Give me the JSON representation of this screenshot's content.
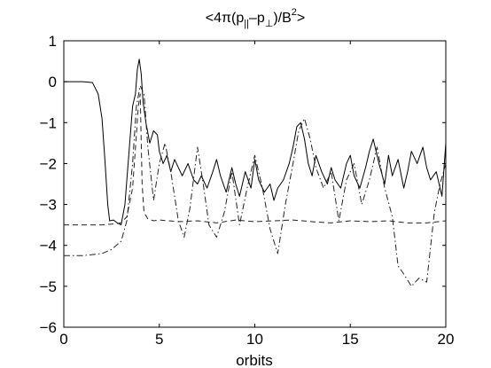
{
  "chart_data": {
    "type": "line",
    "title": {
      "prefix": "<4π(p",
      "sub1": "||",
      "mid": "–p",
      "sub2": "⊥",
      "after": ")/B",
      "sup": "2",
      "suffix": ">"
    },
    "xlabel": "orbits",
    "ylabel": "",
    "xlim": [
      0,
      20
    ],
    "ylim": [
      -6,
      1
    ],
    "xticks": [
      0,
      5,
      10,
      15,
      20
    ],
    "yticks": [
      1,
      0,
      -1,
      -2,
      -3,
      -4,
      -5,
      -6
    ],
    "ytick_labels": [
      "1",
      "0",
      "−1",
      "−2",
      "−3",
      "−4",
      "−5",
      "−6"
    ],
    "grid": false,
    "series": [
      {
        "style": "solid",
        "color": "#000000",
        "x": [
          0,
          1.0,
          1.5,
          1.8,
          2.0,
          2.15,
          2.3,
          2.4,
          2.6,
          2.8,
          3.0,
          3.2,
          3.4,
          3.6,
          3.75,
          3.85,
          3.95,
          4.05,
          4.15,
          4.3,
          4.5,
          4.7,
          4.9,
          5.0,
          5.2,
          5.4,
          5.6,
          5.8,
          6.0,
          6.2,
          6.5,
          6.8,
          7.0,
          7.2,
          7.5,
          7.8,
          8.0,
          8.2,
          8.5,
          8.8,
          9.0,
          9.2,
          9.5,
          9.8,
          10.0,
          10.2,
          10.5,
          10.8,
          11.0,
          11.2,
          11.5,
          11.8,
          12.0,
          12.2,
          12.4,
          12.6,
          12.8,
          13.0,
          13.2,
          13.5,
          13.8,
          14.0,
          14.2,
          14.5,
          14.8,
          15.0,
          15.2,
          15.5,
          15.8,
          16.0,
          16.2,
          16.5,
          16.8,
          17.0,
          17.2,
          17.5,
          17.8,
          18.0,
          18.2,
          18.5,
          18.8,
          19.0,
          19.2,
          19.5,
          19.8,
          20.0
        ],
        "values": [
          0,
          0,
          -0.02,
          -0.3,
          -0.9,
          -1.9,
          -3.0,
          -3.4,
          -3.38,
          -3.45,
          -3.5,
          -3.0,
          -1.8,
          -0.6,
          -0.3,
          0.3,
          0.55,
          0.2,
          -0.5,
          -1.0,
          -1.5,
          -1.2,
          -1.3,
          -1.7,
          -2.0,
          -1.8,
          -2.2,
          -1.9,
          -2.1,
          -2.3,
          -2.0,
          -2.4,
          -2.5,
          -2.3,
          -2.6,
          -2.2,
          -1.9,
          -2.3,
          -2.7,
          -2.1,
          -2.5,
          -2.8,
          -2.2,
          -2.6,
          -1.9,
          -2.4,
          -2.7,
          -2.5,
          -2.9,
          -2.6,
          -2.4,
          -2.0,
          -1.6,
          -1.1,
          -1.0,
          -1.4,
          -2.0,
          -2.3,
          -1.8,
          -2.2,
          -2.5,
          -2.1,
          -2.4,
          -2.6,
          -2.0,
          -1.8,
          -2.3,
          -2.6,
          -2.1,
          -1.7,
          -1.4,
          -2.0,
          -2.5,
          -1.8,
          -2.3,
          -1.9,
          -2.6,
          -2.2,
          -1.7,
          -2.0,
          -1.6,
          -2.1,
          -2.4,
          -2.2,
          -2.8,
          -1.5
        ]
      },
      {
        "style": "dashed",
        "color": "#222222",
        "x": [
          0,
          1.0,
          2.0,
          2.5,
          3.0,
          3.3,
          3.6,
          3.8,
          3.9,
          4.0,
          4.1,
          4.2,
          4.4,
          4.7,
          5.0,
          6.0,
          7.0,
          8.0,
          9.0,
          10.0,
          11.0,
          12.0,
          13.0,
          14.0,
          15.0,
          16.0,
          17.0,
          18.0,
          19.0,
          20.0
        ],
        "values": [
          -3.5,
          -3.5,
          -3.5,
          -3.48,
          -3.45,
          -3.3,
          -2.6,
          -1.3,
          -0.6,
          -0.3,
          -2.5,
          -3.2,
          -3.35,
          -3.4,
          -3.38,
          -3.42,
          -3.4,
          -3.45,
          -3.38,
          -3.42,
          -3.4,
          -3.38,
          -3.42,
          -3.45,
          -3.4,
          -3.42,
          -3.4,
          -3.45,
          -3.45,
          -3.4
        ]
      },
      {
        "style": "dashdot",
        "color": "#222222",
        "x": [
          0,
          1.0,
          2.0,
          2.5,
          3.0,
          3.3,
          3.6,
          3.8,
          4.0,
          4.2,
          4.4,
          4.7,
          5.0,
          5.3,
          5.6,
          6.0,
          6.3,
          6.6,
          7.0,
          7.3,
          7.6,
          8.0,
          8.4,
          8.8,
          9.2,
          9.6,
          10.0,
          10.4,
          10.8,
          11.2,
          11.6,
          12.0,
          12.3,
          12.6,
          12.9,
          13.2,
          13.6,
          14.0,
          14.4,
          14.8,
          15.2,
          15.6,
          16.0,
          16.4,
          16.8,
          17.2,
          17.5,
          17.8,
          18.2,
          18.6,
          19.0,
          19.4,
          19.7,
          20.0
        ],
        "values": [
          -4.25,
          -4.25,
          -4.2,
          -4.1,
          -3.9,
          -3.4,
          -2.0,
          -0.6,
          -0.1,
          -0.3,
          -1.6,
          -2.9,
          -2.0,
          -1.5,
          -2.2,
          -3.4,
          -3.8,
          -3.1,
          -1.6,
          -2.5,
          -3.5,
          -3.8,
          -3.2,
          -2.2,
          -3.5,
          -2.6,
          -1.8,
          -2.6,
          -3.6,
          -4.2,
          -3.0,
          -2.0,
          -1.2,
          -0.9,
          -1.4,
          -2.1,
          -2.6,
          -2.2,
          -3.4,
          -2.4,
          -2.0,
          -3.0,
          -2.4,
          -1.6,
          -2.6,
          -3.3,
          -4.5,
          -4.7,
          -5.0,
          -4.8,
          -4.9,
          -3.2,
          -2.5,
          -2.0
        ]
      }
    ]
  }
}
